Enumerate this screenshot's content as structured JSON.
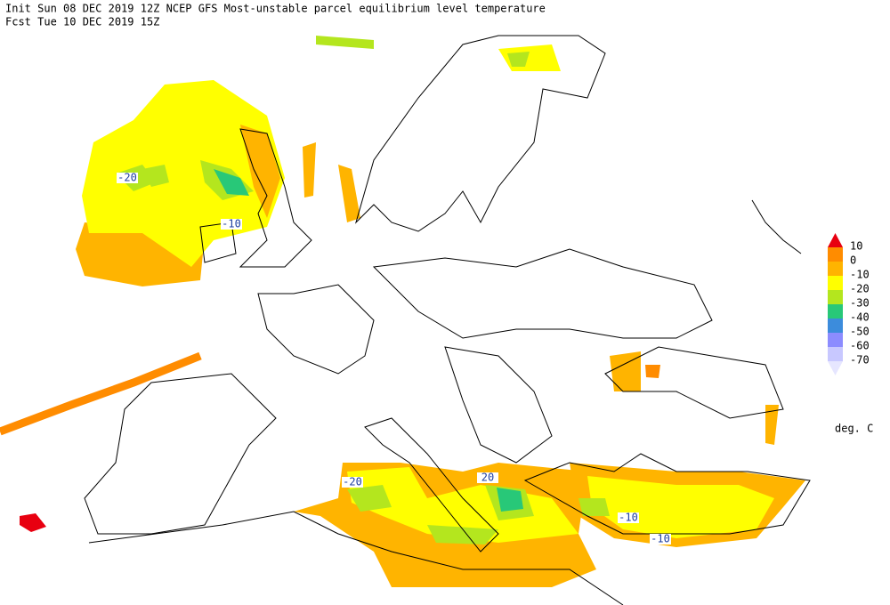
{
  "header": {
    "line1": "Init  Sun 08 DEC 2019 12Z  NCEP GFS Most-unstable parcel equilibrium level temperature",
    "line2": "Fcst Tue 10 DEC 2019 15Z"
  },
  "legend": {
    "labels": [
      10,
      0,
      -10,
      -20,
      -30,
      -40,
      -50,
      -60,
      -70
    ],
    "colors": [
      "#e80010",
      "#ff8c00",
      "#ffb400",
      "#ffff00",
      "#b4e61e",
      "#28c878",
      "#3c8cdc",
      "#8c8cff",
      "#c8c8ff",
      "#e6e6ff"
    ],
    "unit": "deg. C"
  },
  "map": {
    "contour_labels": [
      -20,
      -10,
      -20,
      20,
      -10,
      -10
    ]
  }
}
